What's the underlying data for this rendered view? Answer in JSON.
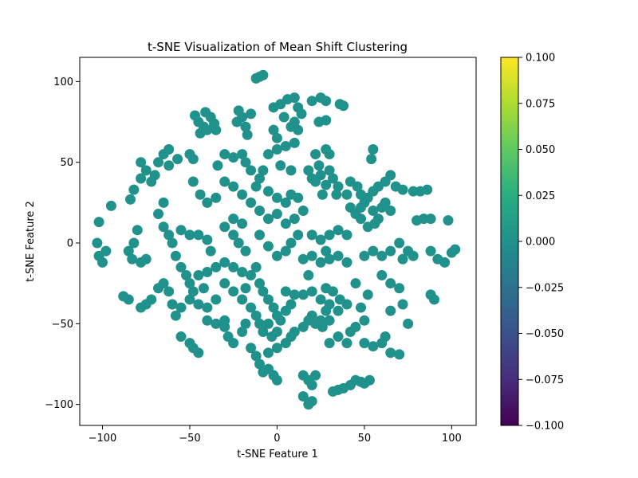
{
  "chart_data": {
    "type": "scatter",
    "title": "t-SNE Visualization of Mean Shift Clustering",
    "xlabel": "t-SNE Feature 1",
    "ylabel": "t-SNE Feature 2",
    "xlim": [
      -113,
      114
    ],
    "ylim": [
      -113,
      115
    ],
    "x_ticks": [
      -100,
      -50,
      0,
      50,
      100
    ],
    "y_ticks": [
      -100,
      -50,
      0,
      50,
      100
    ],
    "x_tick_labels": [
      "−100",
      "−50",
      "0",
      "50",
      "100"
    ],
    "y_tick_labels": [
      "−100",
      "−50",
      "0",
      "50",
      "100"
    ],
    "grid": false,
    "point_color": "#21918c",
    "colorbar": {
      "colormap": "viridis",
      "range": [
        -0.1,
        0.1
      ],
      "ticks": [
        0.1,
        0.075,
        0.05,
        0.025,
        0.0,
        -0.025,
        -0.05,
        -0.075,
        -0.1
      ],
      "tick_labels": [
        "0.100",
        "0.075",
        "0.050",
        "0.025",
        "0.000",
        "−0.025",
        "−0.050",
        "−0.075",
        "−0.100"
      ]
    },
    "series": [
      {
        "points": [
          [
            -10,
            103
          ],
          [
            -12,
            102
          ],
          [
            -8,
            104
          ],
          [
            -45,
            75
          ],
          [
            -42,
            72
          ],
          [
            -40,
            70
          ],
          [
            -44,
            68
          ],
          [
            -38,
            78
          ],
          [
            -36,
            74
          ],
          [
            -47,
            79
          ],
          [
            -41,
            81
          ],
          [
            -35,
            70
          ],
          [
            -22,
            82
          ],
          [
            -20,
            78
          ],
          [
            -18,
            72
          ],
          [
            -17,
            67
          ],
          [
            -23,
            75
          ],
          [
            -15,
            80
          ],
          [
            -2,
            84
          ],
          [
            2,
            86
          ],
          [
            6,
            89
          ],
          [
            10,
            90
          ],
          [
            12,
            84
          ],
          [
            14,
            80
          ],
          [
            10,
            75
          ],
          [
            4,
            78
          ],
          [
            8,
            72
          ],
          [
            12,
            70
          ],
          [
            -2,
            70
          ],
          [
            0,
            65
          ],
          [
            20,
            88
          ],
          [
            25,
            90
          ],
          [
            28,
            88
          ],
          [
            24,
            75
          ],
          [
            28,
            76
          ],
          [
            38,
            85
          ],
          [
            36,
            86
          ],
          [
            -62,
            58
          ],
          [
            -65,
            55
          ],
          [
            -68,
            50
          ],
          [
            -62,
            48
          ],
          [
            -57,
            52
          ],
          [
            -50,
            55
          ],
          [
            -48,
            52
          ],
          [
            -30,
            55
          ],
          [
            -25,
            53
          ],
          [
            -20,
            55
          ],
          [
            -18,
            50
          ],
          [
            -34,
            48
          ],
          [
            -78,
            50
          ],
          [
            -75,
            45
          ],
          [
            -78,
            40
          ],
          [
            -72,
            38
          ],
          [
            -82,
            33
          ],
          [
            -84,
            27
          ],
          [
            -95,
            23
          ],
          [
            -70,
            42
          ],
          [
            -48,
            38
          ],
          [
            -44,
            30
          ],
          [
            -40,
            25
          ],
          [
            -35,
            28
          ],
          [
            -30,
            38
          ],
          [
            -25,
            35
          ],
          [
            -20,
            30
          ],
          [
            -15,
            25
          ],
          [
            -12,
            35
          ],
          [
            -10,
            40
          ],
          [
            -8,
            45
          ],
          [
            -15,
            45
          ],
          [
            -5,
            32
          ],
          [
            0,
            28
          ],
          [
            5,
            25
          ],
          [
            8,
            30
          ],
          [
            12,
            28
          ],
          [
            15,
            20
          ],
          [
            10,
            15
          ],
          [
            5,
            12
          ],
          [
            0,
            18
          ],
          [
            -5,
            15
          ],
          [
            -10,
            20
          ],
          [
            18,
            45
          ],
          [
            20,
            40
          ],
          [
            22,
            38
          ],
          [
            25,
            42
          ],
          [
            28,
            36
          ],
          [
            30,
            45
          ],
          [
            24,
            48
          ],
          [
            32,
            40
          ],
          [
            34,
            30
          ],
          [
            26,
            30
          ],
          [
            30,
            55
          ],
          [
            22,
            55
          ],
          [
            28,
            58
          ],
          [
            -5,
            55
          ],
          [
            0,
            58
          ],
          [
            5,
            60
          ],
          [
            10,
            62
          ],
          [
            2,
            48
          ],
          [
            8,
            45
          ],
          [
            35,
            35
          ],
          [
            40,
            30
          ],
          [
            42,
            38
          ],
          [
            46,
            35
          ],
          [
            48,
            30
          ],
          [
            52,
            28
          ],
          [
            55,
            32
          ],
          [
            58,
            35
          ],
          [
            62,
            38
          ],
          [
            65,
            42
          ],
          [
            55,
            58
          ],
          [
            54,
            52
          ],
          [
            42,
            22
          ],
          [
            45,
            18
          ],
          [
            48,
            22
          ],
          [
            50,
            25
          ],
          [
            55,
            20
          ],
          [
            58,
            15
          ],
          [
            60,
            22
          ],
          [
            62,
            25
          ],
          [
            65,
            20
          ],
          [
            48,
            15
          ],
          [
            52,
            10
          ],
          [
            56,
            12
          ],
          [
            68,
            35
          ],
          [
            72,
            33
          ],
          [
            78,
            32
          ],
          [
            82,
            32
          ],
          [
            86,
            33
          ],
          [
            88,
            15
          ],
          [
            84,
            15
          ],
          [
            80,
            14
          ],
          [
            98,
            14
          ],
          [
            -102,
            13
          ],
          [
            -103,
            0
          ],
          [
            -102,
            -8
          ],
          [
            -100,
            -12
          ],
          [
            -98,
            -5
          ],
          [
            -85,
            -5
          ],
          [
            -83,
            -10
          ],
          [
            -82,
            0
          ],
          [
            -78,
            -12
          ],
          [
            -75,
            -10
          ],
          [
            -80,
            8
          ],
          [
            -65,
            25
          ],
          [
            -68,
            18
          ],
          [
            -65,
            10
          ],
          [
            -62,
            5
          ],
          [
            -60,
            0
          ],
          [
            -58,
            -8
          ],
          [
            -55,
            8
          ],
          [
            -50,
            5
          ],
          [
            -45,
            5
          ],
          [
            -40,
            2
          ],
          [
            -38,
            -5
          ],
          [
            -55,
            -15
          ],
          [
            -52,
            -20
          ],
          [
            -50,
            -25
          ],
          [
            -45,
            -20
          ],
          [
            -40,
            -18
          ],
          [
            -35,
            -15
          ],
          [
            -30,
            -12
          ],
          [
            -25,
            -15
          ],
          [
            -20,
            -18
          ],
          [
            -48,
            -30
          ],
          [
            -42,
            -28
          ],
          [
            -30,
            -25
          ],
          [
            -25,
            -30
          ],
          [
            -20,
            -35
          ],
          [
            -18,
            -28
          ],
          [
            -15,
            -20
          ],
          [
            -12,
            -15
          ],
          [
            -10,
            -25
          ],
          [
            -8,
            -30
          ],
          [
            -5,
            -35
          ],
          [
            -2,
            -40
          ],
          [
            0,
            -45
          ],
          [
            -15,
            -40
          ],
          [
            -12,
            -45
          ],
          [
            -10,
            -50
          ],
          [
            -8,
            -55
          ],
          [
            -5,
            -50
          ],
          [
            -3,
            -58
          ],
          [
            0,
            -55
          ],
          [
            2,
            -48
          ],
          [
            5,
            -42
          ],
          [
            8,
            -38
          ],
          [
            10,
            -32
          ],
          [
            5,
            -30
          ],
          [
            -35,
            -35
          ],
          [
            -40,
            -40
          ],
          [
            -45,
            -38
          ],
          [
            -50,
            -35
          ],
          [
            -55,
            -40
          ],
          [
            -58,
            -45
          ],
          [
            -60,
            -38
          ],
          [
            -62,
            -30
          ],
          [
            -65,
            -25
          ],
          [
            -68,
            -28
          ],
          [
            -72,
            -35
          ],
          [
            -75,
            -38
          ],
          [
            -78,
            -40
          ],
          [
            -88,
            -33
          ],
          [
            -85,
            -35
          ],
          [
            -40,
            -48
          ],
          [
            -35,
            -50
          ],
          [
            -30,
            -52
          ],
          [
            -28,
            -58
          ],
          [
            -25,
            -62
          ],
          [
            -20,
            -55
          ],
          [
            -18,
            -50
          ],
          [
            -30,
            -48
          ],
          [
            -55,
            -58
          ],
          [
            -50,
            -62
          ],
          [
            -48,
            -65
          ],
          [
            -45,
            -68
          ],
          [
            -15,
            -65
          ],
          [
            -12,
            -70
          ],
          [
            -10,
            -75
          ],
          [
            -8,
            -80
          ],
          [
            -5,
            -78
          ],
          [
            -2,
            -82
          ],
          [
            0,
            -85
          ],
          [
            -5,
            -68
          ],
          [
            0,
            -65
          ],
          [
            5,
            -62
          ],
          [
            8,
            -58
          ],
          [
            10,
            -55
          ],
          [
            15,
            -52
          ],
          [
            18,
            -48
          ],
          [
            20,
            -45
          ],
          [
            22,
            -50
          ],
          [
            25,
            -48
          ],
          [
            28,
            -42
          ],
          [
            30,
            -38
          ],
          [
            25,
            -35
          ],
          [
            20,
            -30
          ],
          [
            15,
            -32
          ],
          [
            15,
            -10
          ],
          [
            20,
            -8
          ],
          [
            25,
            -12
          ],
          [
            28,
            -5
          ],
          [
            30,
            -10
          ],
          [
            35,
            -8
          ],
          [
            40,
            -12
          ],
          [
            20,
            5
          ],
          [
            25,
            2
          ],
          [
            30,
            5
          ],
          [
            35,
            8
          ],
          [
            40,
            5
          ],
          [
            18,
            -20
          ],
          [
            28,
            -28
          ],
          [
            32,
            -30
          ],
          [
            36,
            -35
          ],
          [
            40,
            -38
          ],
          [
            35,
            -42
          ],
          [
            30,
            -48
          ],
          [
            26,
            -52
          ],
          [
            30,
            -62
          ],
          [
            35,
            -58
          ],
          [
            40,
            -62
          ],
          [
            42,
            -55
          ],
          [
            45,
            -52
          ],
          [
            50,
            -48
          ],
          [
            48,
            -40
          ],
          [
            52,
            -32
          ],
          [
            45,
            -25
          ],
          [
            50,
            -62
          ],
          [
            55,
            -64
          ],
          [
            60,
            -62
          ],
          [
            62,
            -58
          ],
          [
            65,
            -68
          ],
          [
            70,
            -69
          ],
          [
            55,
            -5
          ],
          [
            60,
            -8
          ],
          [
            65,
            -5
          ],
          [
            70,
            0
          ],
          [
            75,
            -5
          ],
          [
            78,
            -8
          ],
          [
            72,
            -10
          ],
          [
            50,
            -8
          ],
          [
            60,
            -20
          ],
          [
            65,
            -25
          ],
          [
            70,
            -28
          ],
          [
            72,
            -38
          ],
          [
            75,
            -50
          ],
          [
            65,
            -42
          ],
          [
            88,
            -32
          ],
          [
            90,
            -35
          ],
          [
            88,
            -5
          ],
          [
            92,
            -10
          ],
          [
            96,
            -12
          ],
          [
            100,
            -6
          ],
          [
            102,
            -4
          ],
          [
            15,
            -82
          ],
          [
            18,
            -85
          ],
          [
            20,
            -88
          ],
          [
            22,
            -82
          ],
          [
            15,
            -95
          ],
          [
            18,
            -100
          ],
          [
            20,
            -98
          ],
          [
            32,
            -92
          ],
          [
            35,
            -91
          ],
          [
            38,
            -90
          ],
          [
            42,
            -88
          ],
          [
            45,
            -85
          ],
          [
            48,
            -86
          ],
          [
            50,
            -87
          ],
          [
            53,
            -85
          ],
          [
            -30,
            10
          ],
          [
            -25,
            5
          ],
          [
            -22,
            0
          ],
          [
            -18,
            -5
          ],
          [
            -10,
            5
          ],
          [
            -5,
            -2
          ],
          [
            0,
            -8
          ],
          [
            5,
            -5
          ],
          [
            8,
            0
          ],
          [
            12,
            5
          ],
          [
            -25,
            15
          ],
          [
            -20,
            12
          ]
        ]
      }
    ]
  }
}
